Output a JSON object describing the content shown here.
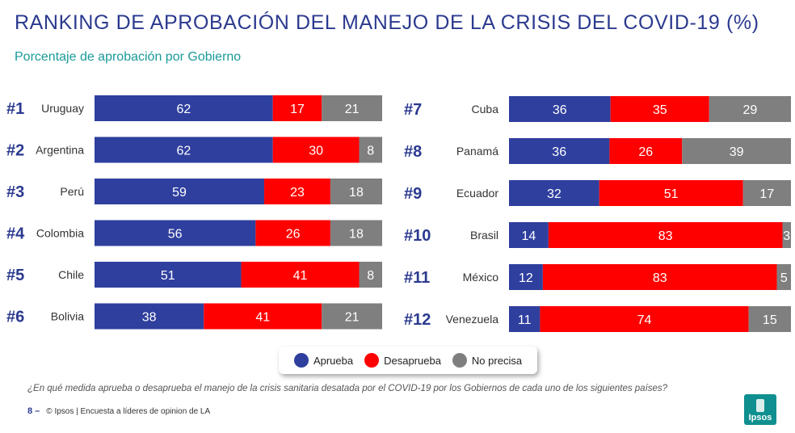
{
  "header": {
    "title": "RANKING DE APROBACIÓN DEL MANEJO DE LA CRISIS DEL COVID-19 (%)",
    "subtitle": "Porcentaje de aprobación por Gobierno"
  },
  "colors": {
    "aprueba": "#2f3f9e",
    "desaprueba": "#ff0000",
    "no_precisa": "#7f7f7f"
  },
  "legend": {
    "aprueba": "Aprueba",
    "desaprueba": "Desaprueba",
    "no_precisa": "No precisa"
  },
  "chart_data": {
    "type": "bar",
    "orientation": "horizontal",
    "stacked": true,
    "normalized_to": 100,
    "series_names": [
      "Aprueba",
      "Desaprueba",
      "No precisa"
    ],
    "rows": [
      {
        "rank": "#1",
        "country": "Uruguay",
        "values": [
          62,
          17,
          21
        ]
      },
      {
        "rank": "#2",
        "country": "Argentina",
        "values": [
          62,
          30,
          8
        ]
      },
      {
        "rank": "#3",
        "country": "Perú",
        "values": [
          59,
          23,
          18
        ]
      },
      {
        "rank": "#4",
        "country": "Colombia",
        "values": [
          56,
          26,
          18
        ]
      },
      {
        "rank": "#5",
        "country": "Chile",
        "values": [
          51,
          41,
          8
        ]
      },
      {
        "rank": "#6",
        "country": "Bolivia",
        "values": [
          38,
          41,
          21
        ]
      },
      {
        "rank": "#7",
        "country": "Cuba",
        "values": [
          36,
          35,
          29
        ]
      },
      {
        "rank": "#8",
        "country": "Panamá",
        "values": [
          36,
          26,
          39
        ]
      },
      {
        "rank": "#9",
        "country": "Ecuador",
        "values": [
          32,
          51,
          17
        ]
      },
      {
        "rank": "#10",
        "country": "Brasil",
        "values": [
          14,
          83,
          3
        ]
      },
      {
        "rank": "#11",
        "country": "México",
        "values": [
          12,
          83,
          5
        ]
      },
      {
        "rank": "#12",
        "country": "Venezuela",
        "values": [
          11,
          74,
          15
        ]
      }
    ]
  },
  "footer": {
    "question": "¿En qué medida aprueba o desaprueba el manejo de la crisis sanitaria desatada por el COVID-19 por los Gobiernos de cada uno de los siguientes países?",
    "page_number": "8 –",
    "source": "© Ipsos | Encuesta a líderes de opinion de LA",
    "logo_text": "Ipsos"
  }
}
